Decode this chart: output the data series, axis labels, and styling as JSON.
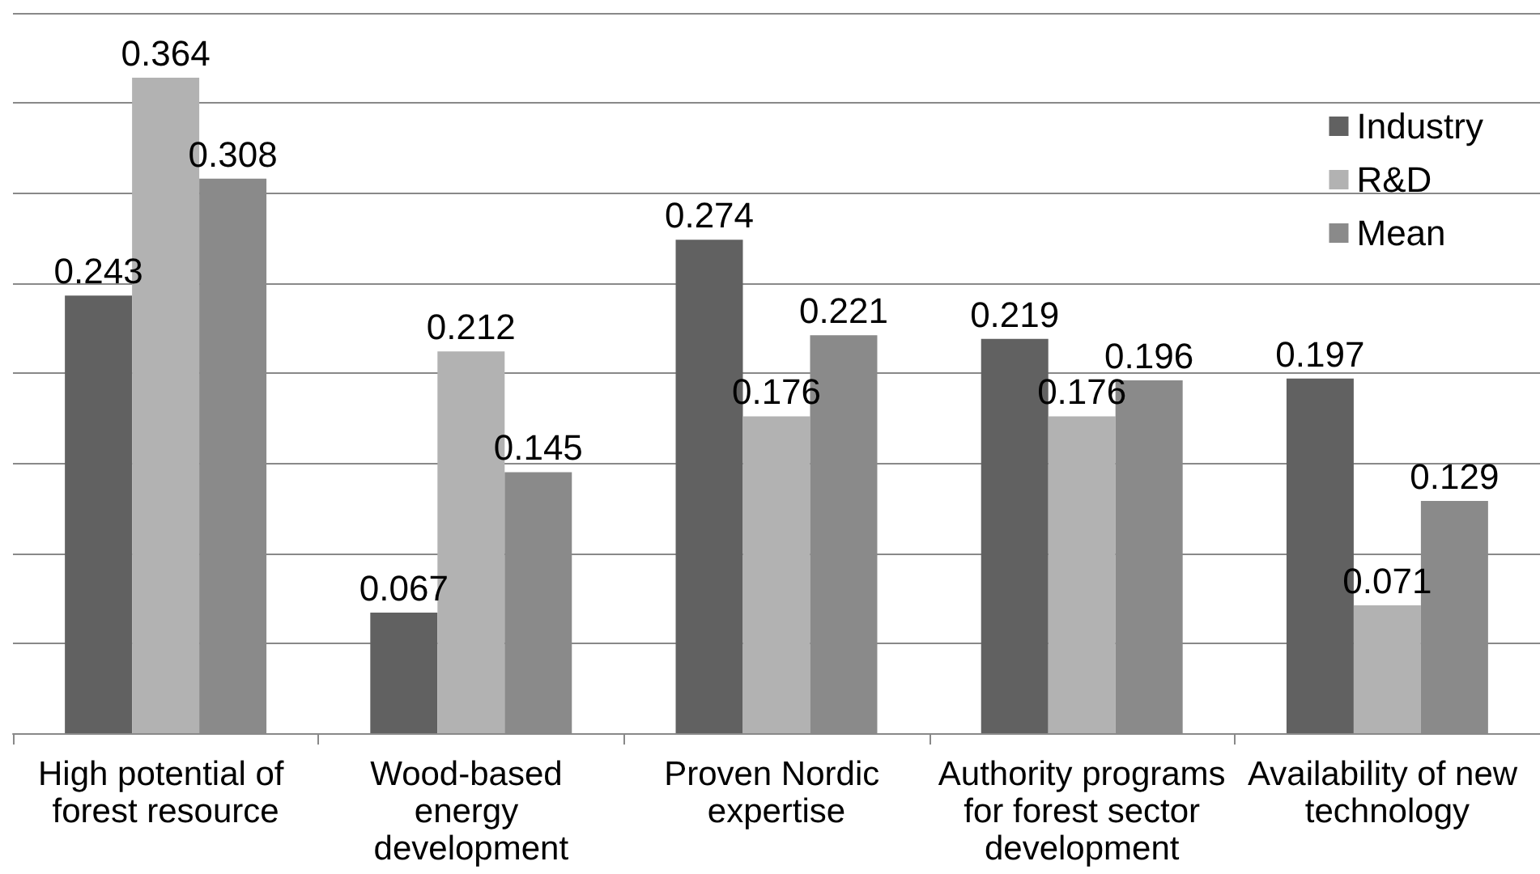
{
  "chart_data": {
    "type": "bar",
    "categories": [
      "High potential of forest resource",
      "Wood-based energy development",
      "Proven Nordic expertise",
      "Authority programs for forest sector development",
      "Availability of new technology"
    ],
    "series": [
      {
        "name": "Industry",
        "color": "#616161",
        "values": [
          0.243,
          0.067,
          0.274,
          0.219,
          0.197
        ]
      },
      {
        "name": "R&D",
        "color": "#b2b2b2",
        "values": [
          0.364,
          0.212,
          0.176,
          0.176,
          0.071
        ]
      },
      {
        "name": "Mean",
        "color": "#8a8a8a",
        "values": [
          0.308,
          0.145,
          0.221,
          0.196,
          0.129
        ]
      }
    ],
    "ylim": [
      0,
      0.4
    ],
    "yticks": [
      0,
      0.05,
      0.1,
      0.15,
      0.2,
      0.25,
      0.3,
      0.35,
      0.4
    ],
    "tick_labels": "x",
    "grid": "y",
    "legend": "top right",
    "data_labels": true
  }
}
